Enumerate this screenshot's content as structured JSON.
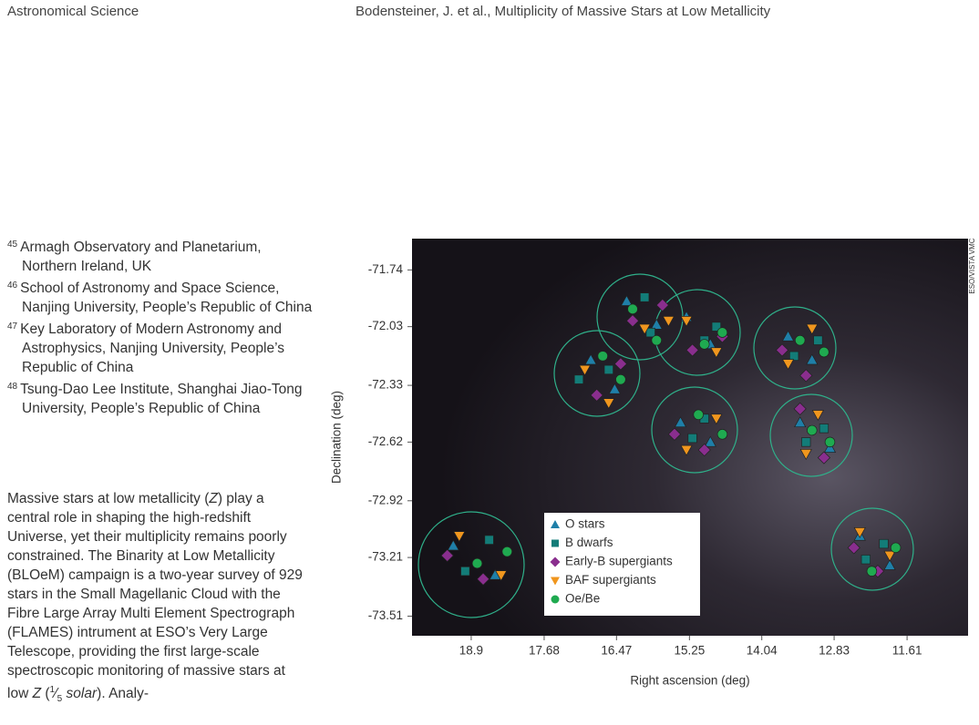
{
  "header": {
    "section": "Astronomical Science",
    "running_title": "Bodensteiner, J. et al., Multiplicity of Massive Stars at Low Metallicity"
  },
  "affiliations": [
    {
      "number": "45",
      "text": "Armagh Observatory and Planetarium, Northern Ireland, UK"
    },
    {
      "number": "46",
      "text": "School of Astronomy and Space Science, Nanjing University, People’s Republic of China"
    },
    {
      "number": "47",
      "text": "Key Laboratory of Modern Astronomy and Astrophysics, Nanjing University, People’s Republic of China"
    },
    {
      "number": "48",
      "text": "Tsung-Dao Lee Institute, Shanghai Jiao-Tong University, People’s Republic of China"
    }
  ],
  "abstract": [
    "Massive stars at low metallicity (",
    "Z",
    ") play a central role in shaping the high-redshift Universe, yet their multiplicity remains poorly constrained. The Binarity at Low Metallicity (BLOeM) campaign is a two-year survey of 929 stars in the Small Magellanic Cloud with the Fibre Large Array Multi Element Spectrograph (FLAMES) intrument at ESO’s Very Large Telescope, providing the first large-scale spectroscopic monitoring of massive stars at low ",
    "Z",
    " (",
    "1",
    "5",
    "solar",
    "). Analy-"
  ],
  "chart_data": {
    "type": "scatter",
    "credit": "ESO/VISTA VMC",
    "xlabel": "Right ascension (deg)",
    "ylabel": "Declination (deg)",
    "xlim": [
      19.89,
      10.59
    ],
    "ylim": [
      -73.61,
      -71.58
    ],
    "xticks": [
      18.9,
      17.68,
      16.47,
      15.25,
      14.04,
      12.83,
      11.61
    ],
    "yticks": [
      -71.74,
      -72.03,
      -72.33,
      -72.62,
      -72.92,
      -73.21,
      -73.51
    ],
    "series": [
      {
        "name": "O stars",
        "color": "#1f7fa8",
        "marker": "triangle",
        "x": [
          19.2,
          18.5,
          16.9,
          16.5,
          16.3,
          15.8,
          15.3,
          14.9,
          15.4,
          14.9,
          13.6,
          13.2,
          13.4,
          12.9,
          12.4,
          11.9
        ],
        "values": [
          -73.15,
          -73.3,
          -72.2,
          -72.35,
          -71.9,
          -72.02,
          -71.98,
          -72.12,
          -72.52,
          -72.62,
          -72.08,
          -72.2,
          -72.52,
          -72.65,
          -73.1,
          -73.25
        ]
      },
      {
        "name": "B dwarfs",
        "color": "#137c78",
        "marker": "square",
        "x": [
          19.0,
          18.6,
          17.1,
          16.6,
          16.0,
          15.9,
          15.0,
          14.8,
          15.2,
          15.0,
          13.5,
          13.1,
          13.3,
          13.0,
          12.3,
          12.0
        ],
        "values": [
          -73.28,
          -73.12,
          -72.3,
          -72.25,
          -71.88,
          -72.06,
          -72.1,
          -72.03,
          -72.6,
          -72.5,
          -72.18,
          -72.1,
          -72.62,
          -72.55,
          -73.22,
          -73.14
        ]
      },
      {
        "name": "Early-B supergiants",
        "color": "#8a2e8e",
        "marker": "diamond",
        "x": [
          19.3,
          18.7,
          16.8,
          16.4,
          16.2,
          15.7,
          15.2,
          14.7,
          15.5,
          15.0,
          13.7,
          13.3,
          13.0,
          13.4,
          12.5,
          12.1
        ],
        "values": [
          -73.2,
          -73.32,
          -72.38,
          -72.22,
          -72.0,
          -71.92,
          -72.15,
          -72.08,
          -72.58,
          -72.66,
          -72.15,
          -72.28,
          -72.7,
          -72.45,
          -73.16,
          -73.28
        ]
      },
      {
        "name": "BAF supergiants",
        "color": "#f0961e",
        "marker": "down-triangle",
        "x": [
          19.1,
          18.4,
          17.0,
          16.6,
          16.0,
          15.6,
          15.3,
          14.8,
          15.3,
          14.8,
          13.6,
          13.2,
          13.1,
          13.3,
          12.4,
          11.9
        ],
        "values": [
          -73.1,
          -73.3,
          -72.25,
          -72.42,
          -72.04,
          -72.0,
          -72.0,
          -72.16,
          -72.66,
          -72.5,
          -72.22,
          -72.04,
          -72.48,
          -72.68,
          -73.08,
          -73.2
        ]
      },
      {
        "name": "Oe/Be",
        "color": "#1faa50",
        "marker": "circle",
        "x": [
          18.8,
          18.3,
          16.7,
          16.4,
          16.2,
          15.8,
          15.0,
          14.7,
          15.1,
          14.7,
          13.4,
          13.0,
          13.2,
          12.9,
          12.2,
          11.8
        ],
        "values": [
          -73.24,
          -73.18,
          -72.18,
          -72.3,
          -71.94,
          -72.1,
          -72.12,
          -72.06,
          -72.48,
          -72.58,
          -72.1,
          -72.16,
          -72.56,
          -72.62,
          -73.28,
          -73.16
        ]
      }
    ]
  }
}
